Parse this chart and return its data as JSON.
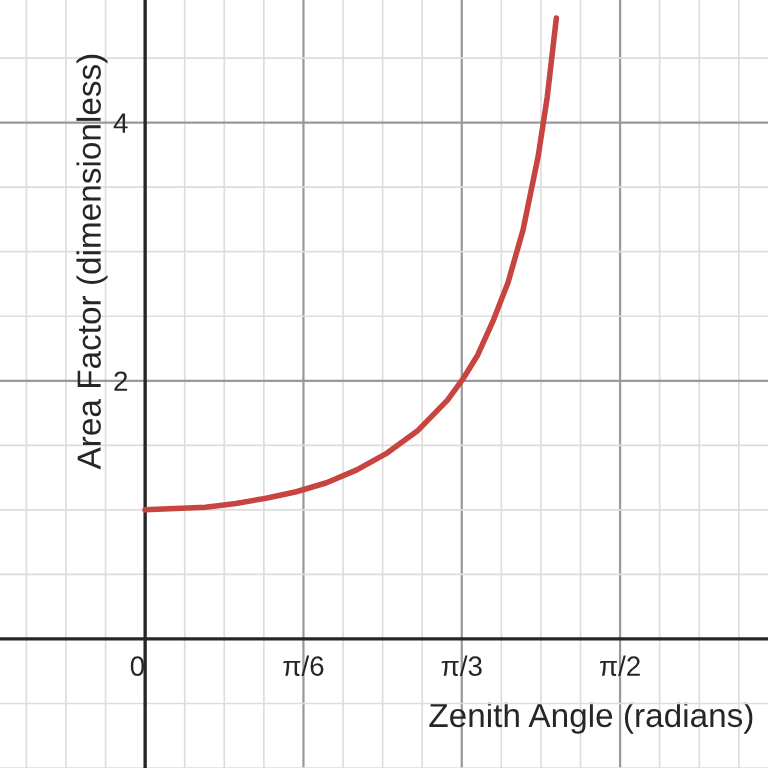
{
  "chart_data": {
    "type": "line",
    "xlabel": "Zenith Angle (radians)",
    "ylabel": "Area Factor (dimensionless)",
    "x": [
      0,
      0.1,
      0.2,
      0.3,
      0.4,
      0.5,
      0.6,
      0.7,
      0.8,
      0.9,
      1.0,
      1.05,
      1.1,
      1.15,
      1.2,
      1.25,
      1.3,
      1.33,
      1.36
    ],
    "series": [
      {
        "color": "#c74440",
        "values": [
          1.0,
          1.01,
          1.02,
          1.05,
          1.09,
          1.14,
          1.21,
          1.31,
          1.44,
          1.61,
          1.85,
          2.01,
          2.2,
          2.46,
          2.76,
          3.17,
          3.74,
          4.2,
          4.81
        ]
      }
    ],
    "xlim": [
      -0.48,
      2.06
    ],
    "ylim": [
      -1,
      4.95
    ],
    "xticks": [
      {
        "value": 0,
        "label": "0"
      },
      {
        "value": 0.5236,
        "label": "π/6"
      },
      {
        "value": 1.0472,
        "label": "π/3"
      },
      {
        "value": 1.5708,
        "label": "π/2"
      }
    ],
    "yticks": [
      2,
      4
    ],
    "grid": true,
    "marker": "none",
    "line_style": "solid"
  }
}
